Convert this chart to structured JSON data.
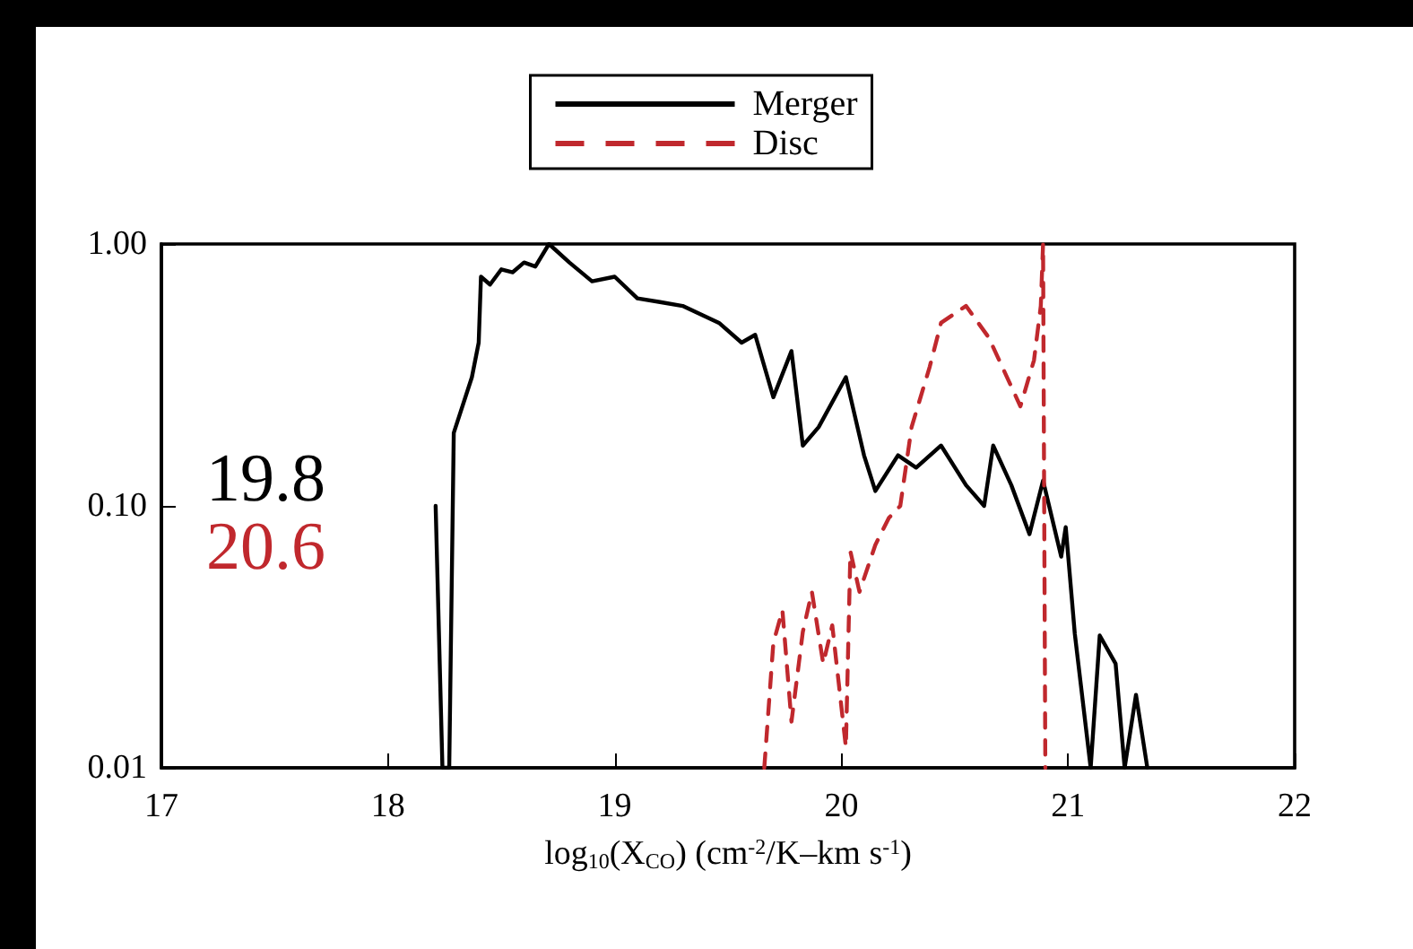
{
  "chart_data": {
    "type": "line",
    "xlabel": "log$_{10}$(X$_{CO}$) (cm$^{-2}$/K–km s$^{-1}$)",
    "xlim": [
      17,
      22
    ],
    "xticks": [
      17,
      18,
      19,
      20,
      21,
      22
    ],
    "ylim": [
      0.01,
      1
    ],
    "yticks": [
      {
        "value": 0.01,
        "label": "0.01"
      },
      {
        "value": 0.1,
        "label": "0.10"
      },
      {
        "value": 1,
        "label": "1.00"
      }
    ],
    "log": "y",
    "grid": false,
    "legend": "top",
    "marker": "none",
    "annotations": [
      "19.8",
      "20.6"
    ],
    "series": [
      {
        "name": "Merger",
        "color": "#000000",
        "line_style": "solid",
        "x": [
          18.21,
          18.24,
          18.27,
          18.29,
          18.37,
          18.4,
          18.41,
          18.45,
          18.5,
          18.55,
          18.6,
          18.65,
          18.71,
          18.8,
          18.9,
          19.0,
          19.1,
          19.2,
          19.3,
          19.46,
          19.56,
          19.62,
          19.7,
          19.78,
          19.83,
          19.9,
          20.02,
          20.1,
          20.15,
          20.25,
          20.33,
          20.44,
          20.55,
          20.63,
          20.67,
          20.75,
          20.83,
          20.89,
          20.97,
          20.99,
          21.03,
          21.1,
          21.14,
          21.21,
          21.25,
          21.3,
          21.35
        ],
        "values": [
          0.1,
          0.01,
          0.01,
          0.19,
          0.31,
          0.42,
          0.75,
          0.7,
          0.8,
          0.78,
          0.85,
          0.82,
          1.0,
          0.85,
          0.72,
          0.75,
          0.62,
          0.6,
          0.58,
          0.5,
          0.42,
          0.45,
          0.26,
          0.39,
          0.17,
          0.2,
          0.31,
          0.156,
          0.114,
          0.156,
          0.14,
          0.17,
          0.12,
          0.1,
          0.17,
          0.12,
          0.078,
          0.125,
          0.064,
          0.083,
          0.0325,
          0.01,
          0.032,
          0.025,
          0.01,
          0.019,
          0.01
        ]
      },
      {
        "name": "Disc",
        "color": "#c0282d",
        "line_style": "dashed",
        "x": [
          19.66,
          19.7,
          19.74,
          19.78,
          19.83,
          19.87,
          19.92,
          19.96,
          20.02,
          20.04,
          20.08,
          20.15,
          20.21,
          20.26,
          20.31,
          20.39,
          20.44,
          20.55,
          20.65,
          20.79,
          20.85,
          20.88,
          20.89,
          20.9
        ],
        "values": [
          0.01,
          0.03,
          0.04,
          0.015,
          0.033,
          0.047,
          0.025,
          0.035,
          0.012,
          0.067,
          0.047,
          0.071,
          0.09,
          0.1,
          0.2,
          0.34,
          0.5,
          0.58,
          0.44,
          0.24,
          0.36,
          0.58,
          1.0,
          0.01
        ]
      }
    ]
  }
}
